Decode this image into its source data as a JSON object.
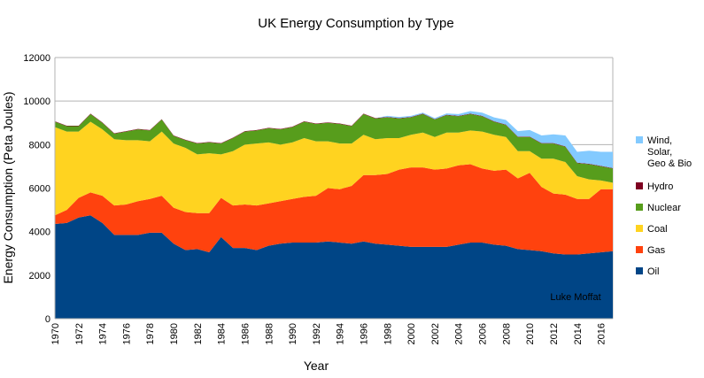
{
  "chart_data": {
    "type": "area",
    "stacked": true,
    "title": "UK Energy Consumption by Type",
    "xlabel": "Year",
    "ylabel": "Energy Consumption (Peta Joules)",
    "ylim": [
      0,
      12000
    ],
    "yticks": [
      0,
      2000,
      4000,
      6000,
      8000,
      10000,
      12000
    ],
    "xlim": [
      1970,
      2017
    ],
    "xticks": [
      1970,
      1972,
      1974,
      1976,
      1978,
      1980,
      1982,
      1984,
      1986,
      1988,
      1990,
      1992,
      1994,
      1996,
      1998,
      2000,
      2002,
      2004,
      2006,
      2008,
      2010,
      2012,
      2014,
      2016
    ],
    "grid": true,
    "legend_position": "right",
    "annotation": "Luke Moffat",
    "x": [
      1970,
      1971,
      1972,
      1973,
      1974,
      1975,
      1976,
      1977,
      1978,
      1979,
      1980,
      1981,
      1982,
      1983,
      1984,
      1985,
      1986,
      1987,
      1988,
      1989,
      1990,
      1991,
      1992,
      1993,
      1994,
      1995,
      1996,
      1997,
      1998,
      1999,
      2000,
      2001,
      2002,
      2003,
      2004,
      2005,
      2006,
      2007,
      2008,
      2009,
      2010,
      2011,
      2012,
      2013,
      2014,
      2015,
      2016,
      2017
    ],
    "series": [
      {
        "name": "Oil",
        "color": "#004586",
        "values": [
          4350,
          4400,
          4650,
          4750,
          4400,
          3850,
          3850,
          3850,
          3950,
          3950,
          3450,
          3150,
          3200,
          3050,
          3750,
          3250,
          3250,
          3150,
          3350,
          3450,
          3500,
          3500,
          3500,
          3550,
          3500,
          3450,
          3550,
          3450,
          3400,
          3350,
          3300,
          3300,
          3300,
          3300,
          3400,
          3500,
          3500,
          3400,
          3350,
          3200,
          3150,
          3100,
          3000,
          2950,
          2950,
          3000,
          3050,
          3100
        ]
      },
      {
        "name": "Gas",
        "color": "#ff420e",
        "values": [
          400,
          600,
          900,
          1050,
          1250,
          1350,
          1400,
          1550,
          1550,
          1700,
          1650,
          1750,
          1650,
          1800,
          1800,
          1950,
          2000,
          2050,
          1950,
          1950,
          2000,
          2100,
          2150,
          2450,
          2450,
          2650,
          3050,
          3150,
          3250,
          3500,
          3650,
          3650,
          3550,
          3600,
          3650,
          3600,
          3400,
          3400,
          3500,
          3250,
          3550,
          2950,
          2750,
          2750,
          2550,
          2500,
          2900,
          2850
        ]
      },
      {
        "name": "Coal",
        "color": "#ffd320",
        "values": [
          4050,
          3600,
          3050,
          3250,
          3050,
          3050,
          2950,
          2800,
          2650,
          2950,
          2950,
          2950,
          2700,
          2750,
          2000,
          2500,
          2750,
          2850,
          2800,
          2600,
          2600,
          2700,
          2500,
          2150,
          2100,
          1950,
          1850,
          1650,
          1650,
          1450,
          1500,
          1600,
          1500,
          1650,
          1500,
          1550,
          1700,
          1650,
          1500,
          1250,
          1000,
          1300,
          1600,
          1500,
          1050,
          900,
          400,
          300
        ]
      },
      {
        "name": "Nuclear",
        "color": "#579d1c",
        "values": [
          250,
          250,
          250,
          350,
          300,
          250,
          400,
          500,
          500,
          550,
          350,
          350,
          500,
          500,
          500,
          600,
          600,
          600,
          650,
          700,
          700,
          750,
          800,
          850,
          900,
          800,
          950,
          950,
          950,
          900,
          800,
          850,
          800,
          800,
          750,
          750,
          700,
          600,
          550,
          650,
          650,
          700,
          700,
          700,
          600,
          700,
          650,
          650
        ]
      },
      {
        "name": "Hydro",
        "color": "#7e0021",
        "values": [
          20,
          20,
          20,
          20,
          20,
          20,
          20,
          20,
          20,
          20,
          20,
          20,
          20,
          20,
          20,
          20,
          20,
          20,
          20,
          20,
          20,
          20,
          20,
          20,
          20,
          20,
          20,
          20,
          20,
          20,
          20,
          20,
          20,
          20,
          20,
          20,
          20,
          20,
          20,
          20,
          20,
          20,
          20,
          20,
          20,
          20,
          20,
          20
        ]
      },
      {
        "name": "Wind,\nSolar,\nGeo & Bio",
        "color": "#83caff",
        "values": [
          0,
          0,
          0,
          0,
          0,
          0,
          0,
          0,
          0,
          0,
          0,
          0,
          0,
          0,
          0,
          0,
          0,
          0,
          0,
          0,
          0,
          0,
          0,
          0,
          0,
          0,
          0,
          0,
          50,
          50,
          50,
          50,
          50,
          60,
          80,
          120,
          150,
          180,
          210,
          250,
          300,
          350,
          400,
          500,
          500,
          600,
          650,
          750
        ]
      }
    ]
  }
}
